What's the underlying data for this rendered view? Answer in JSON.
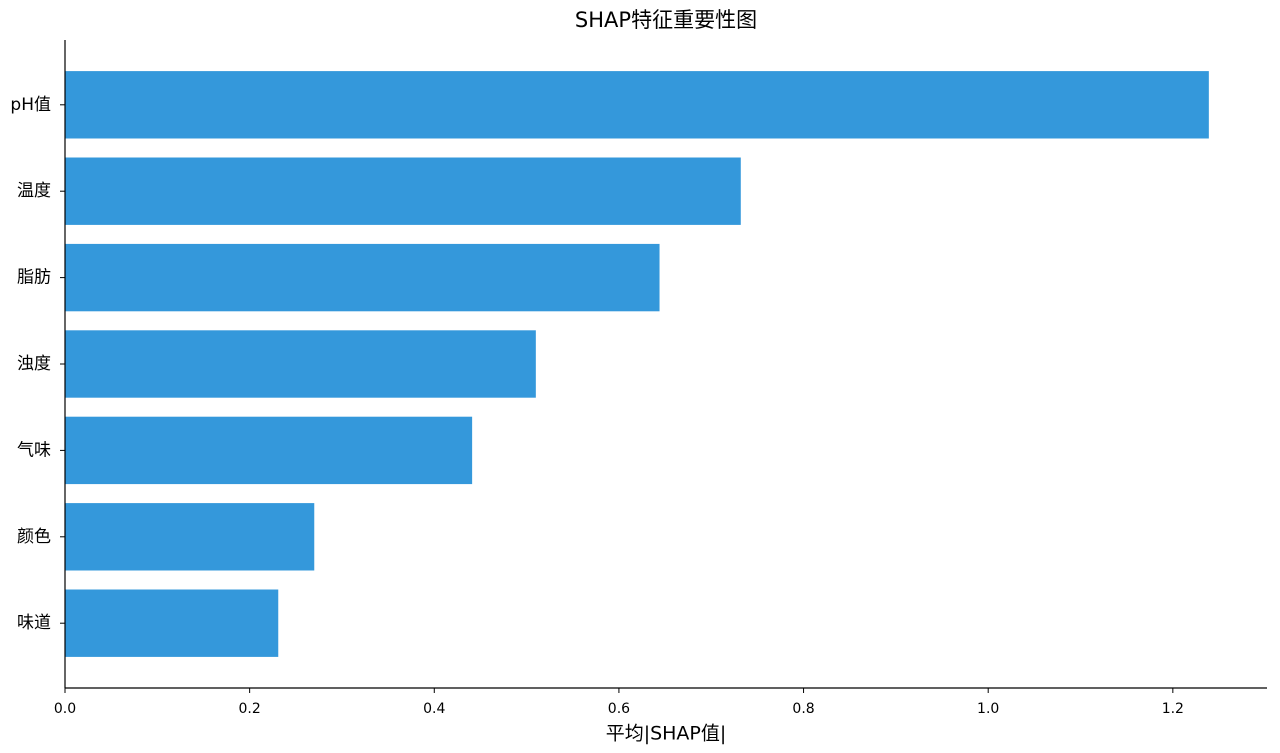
{
  "chart_data": {
    "type": "barh",
    "title": "SHAP特征重要性图",
    "xlabel": "平均|SHAP值|",
    "categories": [
      "pH值",
      "温度",
      "脂肪",
      "浊度",
      "气味",
      "颜色",
      "味道"
    ],
    "values": [
      1.239,
      0.732,
      0.644,
      0.51,
      0.441,
      0.27,
      0.231
    ],
    "color": "#3498db",
    "xlim": [
      0,
      1.302
    ],
    "xticks": [
      {
        "value": 0,
        "label": "0.0"
      },
      0.2,
      0.4,
      0.6,
      0.8,
      {
        "value": 1,
        "label": "1.0"
      },
      1.2
    ]
  }
}
